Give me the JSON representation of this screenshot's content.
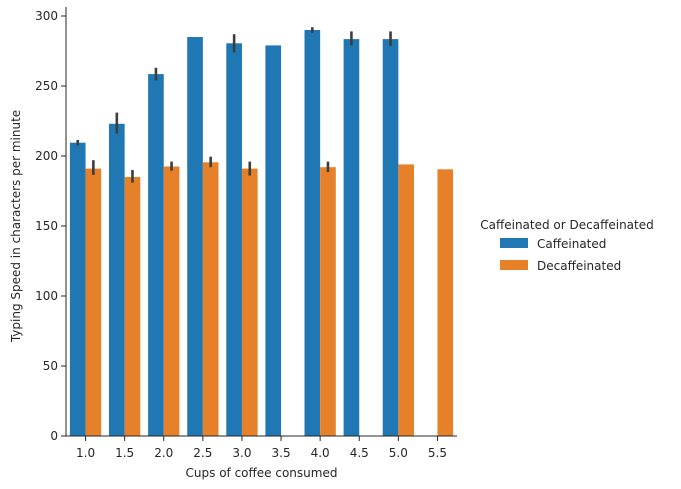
{
  "chart_data": {
    "type": "bar",
    "title": "",
    "xlabel": "Cups of coffee consumed",
    "ylabel": "Typing Speed in characters per minute",
    "ylim": [
      0,
      300
    ],
    "yticks": [
      "0",
      "50",
      "100",
      "150",
      "200",
      "250",
      "300"
    ],
    "categories": [
      "1.0",
      "1.5",
      "2.0",
      "2.5",
      "3.0",
      "3.5",
      "4.0",
      "4.5",
      "5.0",
      "5.5"
    ],
    "legend": {
      "title": "Caffeinated or Decaffeinated",
      "placement": "center-right"
    },
    "series": [
      {
        "name": "Caffeinated",
        "color": "#1f77b4",
        "values": [
          209.5,
          223,
          258.5,
          285,
          280.5,
          279,
          290,
          283.5,
          283.5,
          null
        ],
        "err_low": [
          207.5,
          216,
          254,
          null,
          274,
          null,
          288,
          279,
          278.5,
          null
        ],
        "err_high": [
          211.5,
          231,
          263,
          null,
          287,
          null,
          292,
          289,
          289,
          null
        ]
      },
      {
        "name": "Decaffeinated",
        "color": "#e6812a",
        "values": [
          191,
          185,
          192.5,
          195.5,
          191,
          null,
          192,
          null,
          194,
          190.5
        ],
        "err_low": [
          186.5,
          181,
          189.5,
          192,
          186,
          null,
          188.5,
          null,
          null,
          null
        ],
        "err_high": [
          197,
          190,
          196,
          199.5,
          196,
          null,
          196,
          null,
          null,
          null
        ]
      }
    ]
  }
}
